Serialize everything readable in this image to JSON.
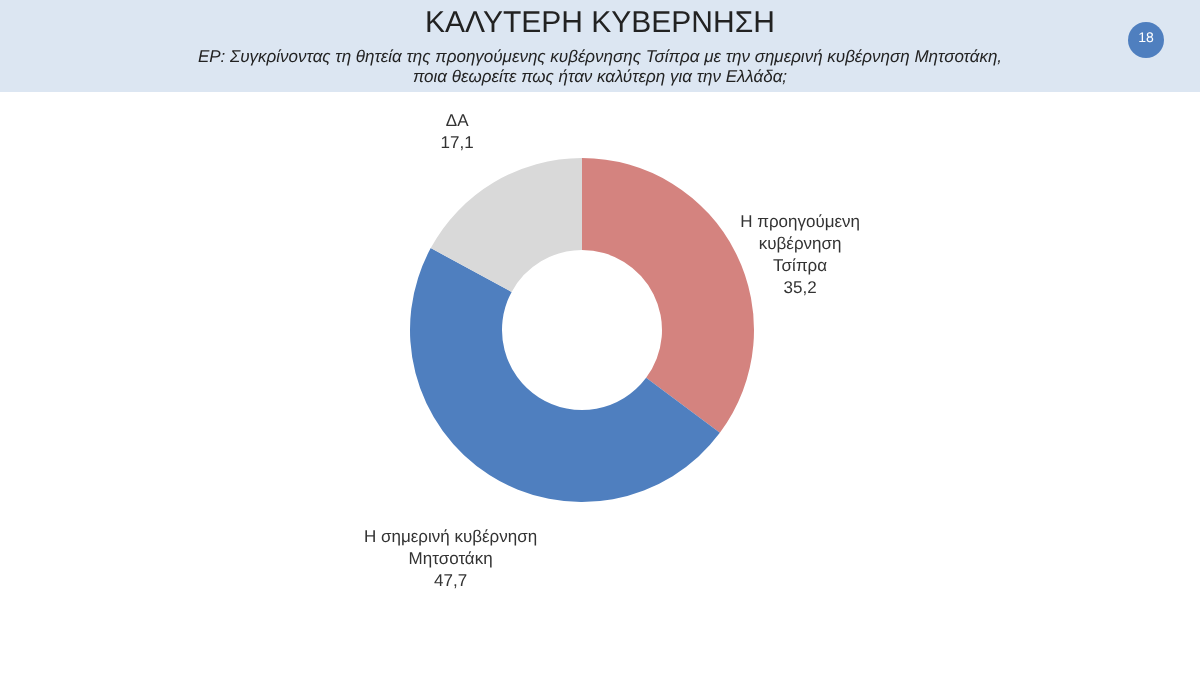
{
  "chart_data": {
    "type": "donut",
    "title": "ΚΑΛΥΤΕΡΗ ΚΥΒΕΡΝΗΣΗ",
    "subtitle": "ΕΡ: Συγκρίνοντας τη θητεία της προηγούμενης κυβέρνησης Τσίπρα με την σημερινή κυβέρνηση Μητσοτάκη,\nποια θεωρείτε πως ήταν καλύτερη για την  Ελλάδα;",
    "categories": [
      "Η προηγούμενη\nκυβέρνηση\nΤσίπρα",
      "Η σημερινή κυβέρνηση\nΜητσοτάκη",
      "ΔΑ"
    ],
    "values": [
      35.2,
      47.7,
      17.1
    ],
    "value_labels": [
      "35,2",
      "47,7",
      "17,1"
    ],
    "colors": [
      "#d4837f",
      "#4f7fbf",
      "#d9d9d9"
    ],
    "annotations": [
      "18"
    ]
  }
}
